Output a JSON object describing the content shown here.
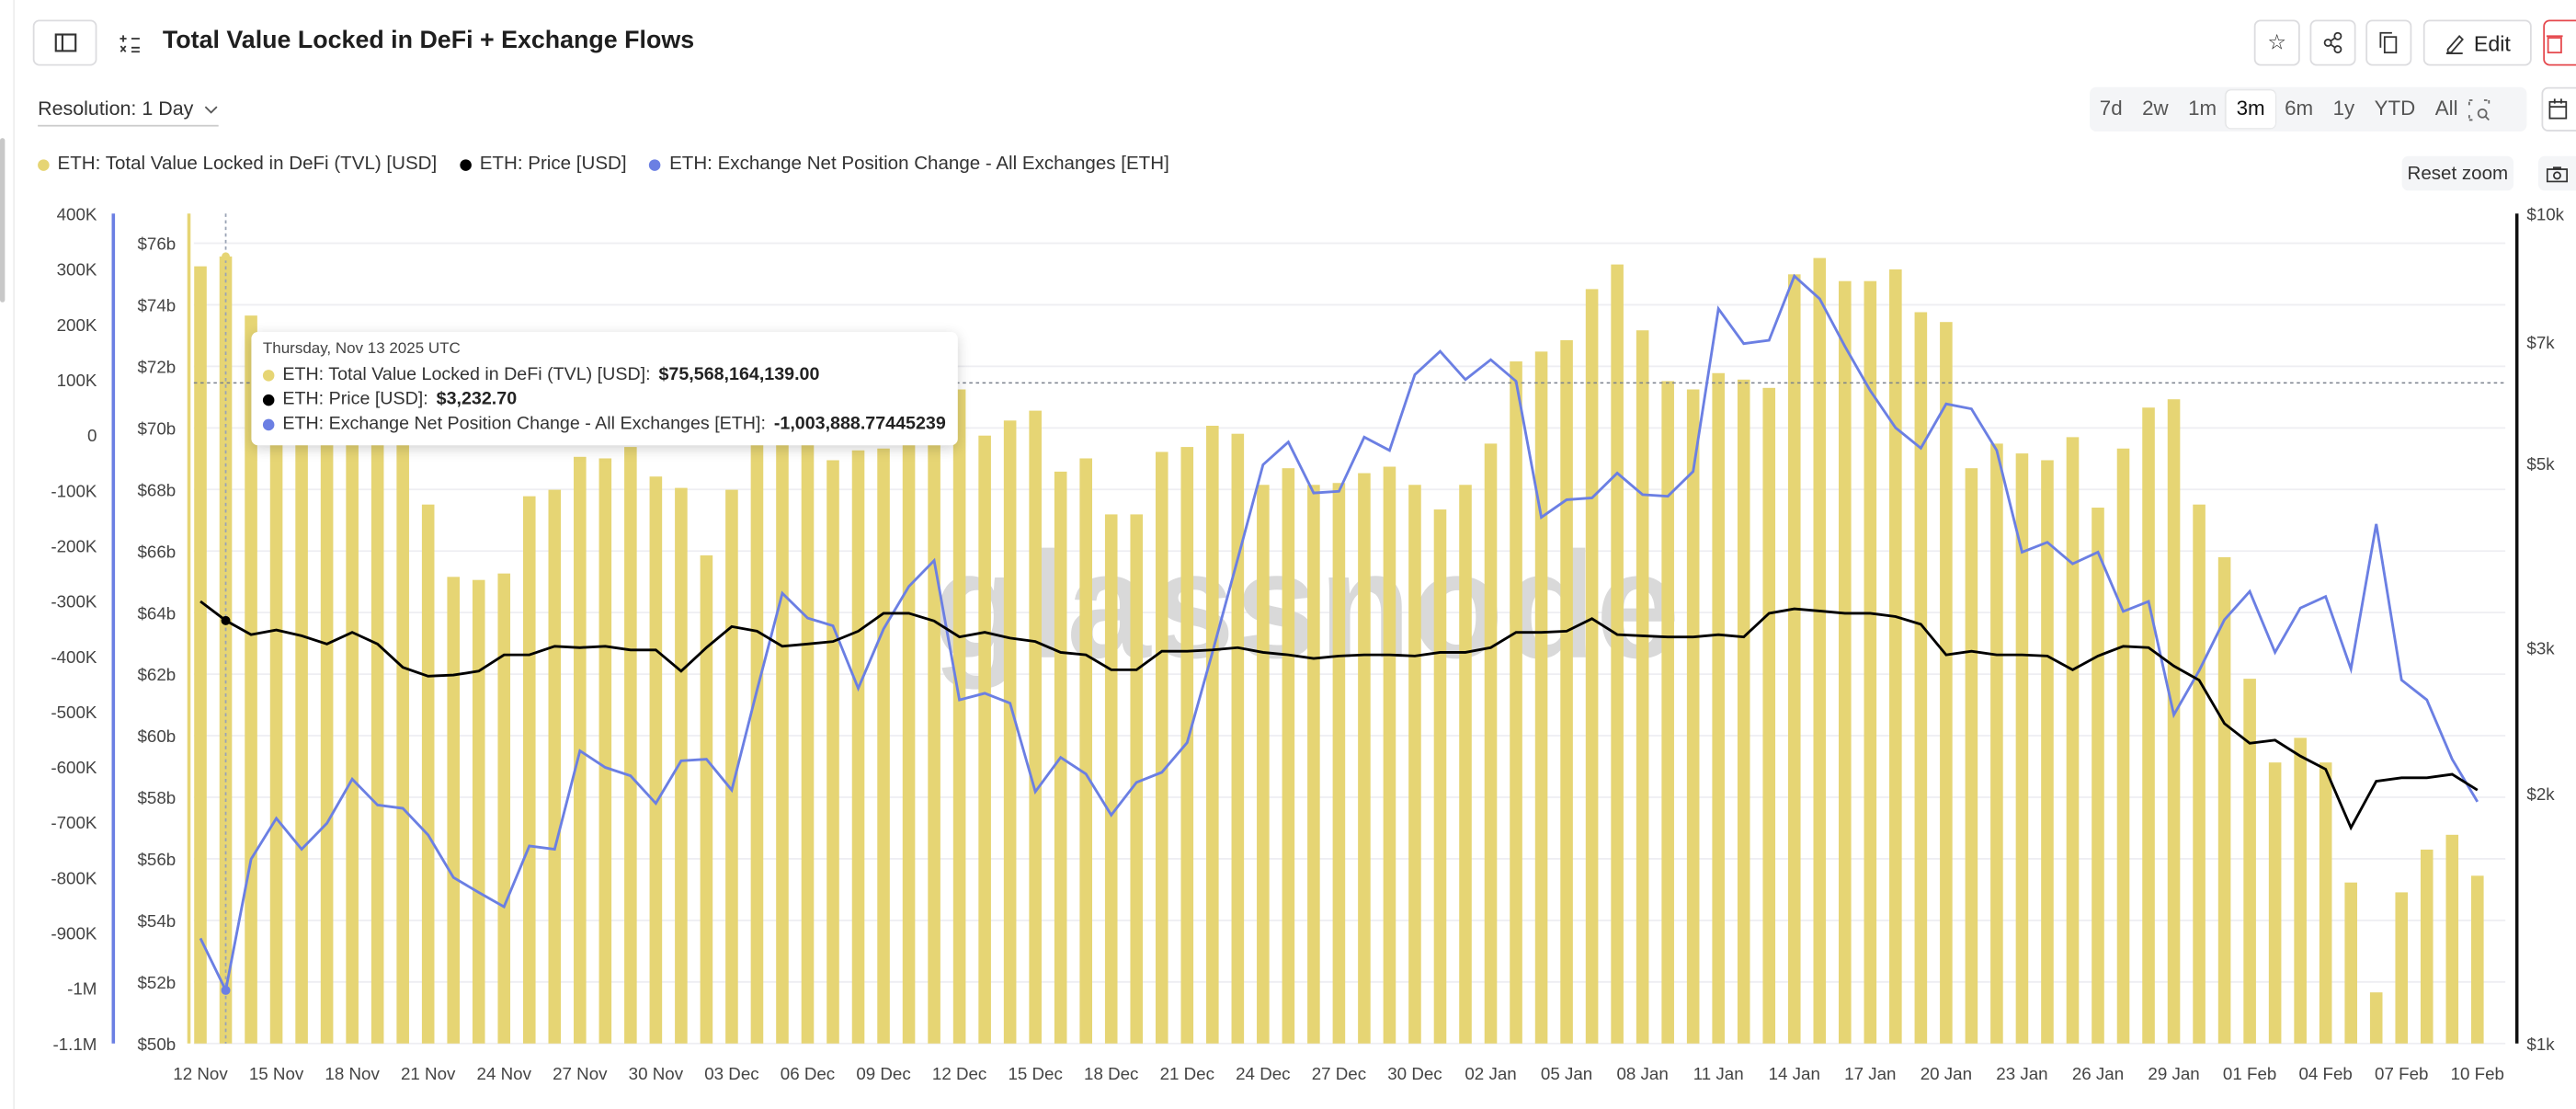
{
  "header": {
    "title": "Total Value Locked in DeFi + Exchange Flows",
    "edit_label": "Edit",
    "icons": [
      "sidebar-toggle-icon",
      "formula-icon",
      "star-icon",
      "share-icon",
      "copy-icon",
      "pencil-icon",
      "trash-icon",
      "calendar-icon",
      "zoom-search-icon",
      "camera-icon"
    ]
  },
  "controls": {
    "resolution_label": "Resolution: 1 Day",
    "ranges": [
      "7d",
      "2w",
      "1m",
      "3m",
      "6m",
      "1y",
      "YTD",
      "All"
    ],
    "selected_range": "3m",
    "reset_zoom_label": "Reset zoom"
  },
  "colors": {
    "tvl": "#e6d574",
    "price": "#000000",
    "exchange": "#6b7fe3",
    "delete": "#e5484d"
  },
  "tooltip": {
    "date": "Thursday, Nov 13 2025 UTC",
    "rows": [
      {
        "label": "ETH: Total Value Locked in DeFi (TVL) [USD]:",
        "value": "$75,568,164,139.00"
      },
      {
        "label": "ETH: Price [USD]:",
        "value": "$3,232.70"
      },
      {
        "label": "ETH: Exchange Net Position Change - All Exchanges [ETH]:",
        "value": "-1,003,888.77445239"
      }
    ]
  },
  "chart_data": {
    "type": "bar+line",
    "watermark": "glassnode",
    "x_tick_labels": [
      "12 Nov",
      "15 Nov",
      "18 Nov",
      "21 Nov",
      "24 Nov",
      "27 Nov",
      "30 Nov",
      "03 Dec",
      "06 Dec",
      "09 Dec",
      "12 Dec",
      "15 Dec",
      "18 Dec",
      "21 Dec",
      "24 Dec",
      "27 Dec",
      "30 Dec",
      "02 Jan",
      "05 Jan",
      "08 Jan",
      "11 Jan",
      "14 Jan",
      "17 Jan",
      "20 Jan",
      "23 Jan",
      "26 Jan",
      "29 Jan",
      "01 Feb",
      "04 Feb",
      "07 Feb",
      "10 Feb"
    ],
    "x_range": [
      "2025-11-12",
      "2026-02-10"
    ],
    "grid": true,
    "legend_placement": "top-left",
    "axes": {
      "exchange": {
        "position": "left-outer",
        "range": [
          -1100000,
          400000
        ],
        "tick_labels": [
          "400K",
          "300K",
          "200K",
          "100K",
          "0",
          "-100K",
          "-200K",
          "-300K",
          "-400K",
          "-500K",
          "-600K",
          "-700K",
          "-800K",
          "-900K",
          "-1M",
          "-1.1M"
        ]
      },
      "tvl": {
        "position": "left-inner",
        "unit": "USD billions",
        "range": [
          50,
          77
        ],
        "tick_labels": [
          "$76b",
          "$74b",
          "$72b",
          "$70b",
          "$68b",
          "$66b",
          "$64b",
          "$62b",
          "$60b",
          "$58b",
          "$56b",
          "$54b",
          "$52b",
          "$50b"
        ]
      },
      "price": {
        "position": "right",
        "scale": "log",
        "range": [
          1000,
          10000
        ],
        "tick_labels": [
          "$10k",
          "$7k",
          "$5k",
          "$3k",
          "$2k",
          "$1k"
        ]
      }
    },
    "series": [
      {
        "name": "ETH: Total Value Locked in DeFi (TVL) [USD]",
        "type": "bar",
        "axis": "tvl",
        "unit": "USD billions",
        "values": [
          75.25,
          75.57,
          73.65,
          70.56,
          70.29,
          70.13,
          69.49,
          70.29,
          70.56,
          67.51,
          65.16,
          65.06,
          65.27,
          67.78,
          67.99,
          69.06,
          69.01,
          69.38,
          68.42,
          68.05,
          65.86,
          67.99,
          69.91,
          69.86,
          69.7,
          68.95,
          69.27,
          69.33,
          72.05,
          71.68,
          71.25,
          69.75,
          70.24,
          70.56,
          68.58,
          69.01,
          67.19,
          67.19,
          69.22,
          69.38,
          70.07,
          69.81,
          68.15,
          68.69,
          68.15,
          68.21,
          68.53,
          68.74,
          68.15,
          67.35,
          68.15,
          69.49,
          72.16,
          72.48,
          72.85,
          74.51,
          75.31,
          73.17,
          71.52,
          71.25,
          71.78,
          71.57,
          71.3,
          74.99,
          75.52,
          74.77,
          74.77,
          75.15,
          73.76,
          73.44,
          68.69,
          69.49,
          69.17,
          68.95,
          69.7,
          67.41,
          69.33,
          70.66,
          70.93,
          67.51,
          65.8,
          61.85,
          59.13,
          59.93,
          59.13,
          55.23,
          51.66,
          54.91,
          56.3,
          56.78,
          55.45
        ]
      },
      {
        "name": "ETH: Price [USD]",
        "type": "line",
        "axis": "price",
        "values": [
          3410,
          3233,
          3110,
          3150,
          3100,
          3030,
          3130,
          3030,
          2840,
          2770,
          2780,
          2810,
          2940,
          2940,
          3010,
          3000,
          3010,
          2980,
          2980,
          2810,
          3000,
          3180,
          3140,
          3010,
          3030,
          3050,
          3140,
          3300,
          3300,
          3230,
          3090,
          3130,
          3080,
          3050,
          2960,
          2940,
          2820,
          2820,
          2970,
          2970,
          2980,
          3000,
          2960,
          2940,
          2910,
          2930,
          2940,
          2940,
          2930,
          2960,
          2960,
          3000,
          3130,
          3130,
          3140,
          3250,
          3110,
          3100,
          3090,
          3090,
          3110,
          3090,
          3300,
          3340,
          3320,
          3300,
          3300,
          3270,
          3200,
          2940,
          2970,
          2940,
          2940,
          2930,
          2820,
          2930,
          3010,
          3000,
          2850,
          2740,
          2430,
          2300,
          2320,
          2220,
          2140,
          1820,
          2070,
          2090,
          2090,
          2110,
          2020
        ]
      },
      {
        "name": "ETH: Exchange Net Position Change - All Exchanges [ETH]",
        "type": "line",
        "axis": "exchange",
        "values": [
          -910000,
          -1003889,
          -767000,
          -693000,
          -749000,
          -702000,
          -622000,
          -669000,
          -675000,
          -723000,
          -800000,
          -827000,
          -853000,
          -743000,
          -749000,
          -571000,
          -601000,
          -616000,
          -666000,
          -589000,
          -586000,
          -642000,
          -461000,
          -286000,
          -331000,
          -345000,
          -458000,
          -351000,
          -274000,
          -227000,
          -479000,
          -467000,
          -485000,
          -645000,
          -583000,
          -613000,
          -687000,
          -628000,
          -610000,
          -556000,
          -393000,
          -224000,
          -54000,
          -13000,
          -105000,
          -102000,
          -4000,
          -28000,
          109000,
          151000,
          100000,
          136000,
          97000,
          -149000,
          -117000,
          -114000,
          -69000,
          -108000,
          -111000,
          -66000,
          228000,
          165000,
          171000,
          287000,
          246000,
          160000,
          80000,
          13000,
          -24000,
          56000,
          47000,
          -28000,
          -212000,
          -194000,
          -233000,
          -212000,
          -319000,
          -301000,
          -506000,
          -426000,
          -334000,
          -283000,
          -393000,
          -313000,
          -292000,
          -423000,
          -161000,
          -443000,
          -479000,
          -586000,
          -663000
        ]
      }
    ],
    "hovered_index": 1
  }
}
